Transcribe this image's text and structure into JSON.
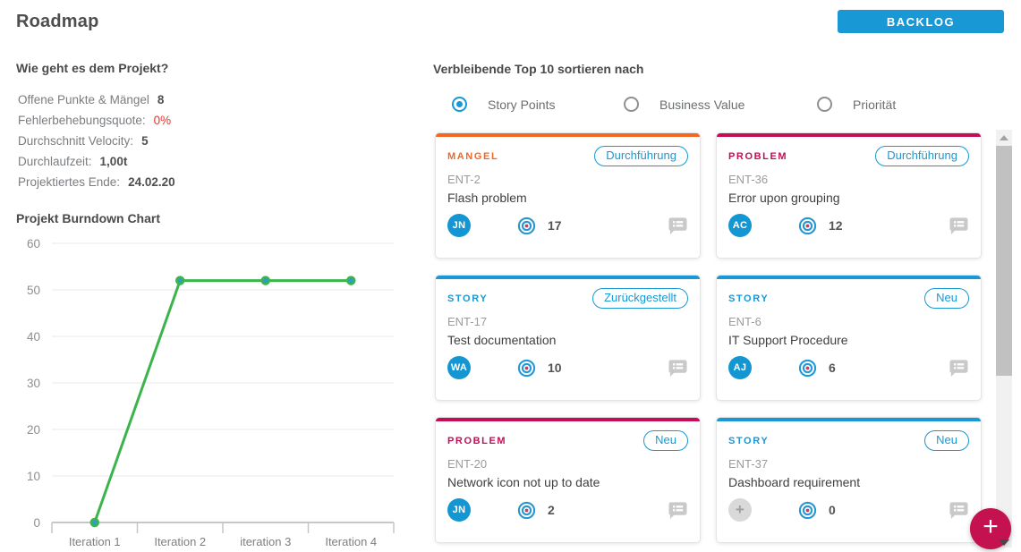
{
  "header": {
    "title": "Roadmap",
    "backlog_button": "BACKLOG"
  },
  "health": {
    "heading": "Wie geht es dem Projekt?",
    "stats": [
      {
        "label": "Offene Punkte & Mängel",
        "value": "8",
        "emphasis": "dark"
      },
      {
        "label": "Fehlerbehebungsquote:",
        "value": "0%",
        "emphasis": "red"
      },
      {
        "label": "Durchschnitt Velocity:",
        "value": "5",
        "emphasis": "dark"
      },
      {
        "label": "Durchlaufzeit:",
        "value": "1,00t",
        "emphasis": "dark"
      },
      {
        "label": "Projektiertes Ende:",
        "value": "24.02.20",
        "emphasis": "dark"
      }
    ]
  },
  "chart_data": {
    "type": "line",
    "title": "Projekt Burndown Chart",
    "categories": [
      "Iteration 1",
      "Iteration 2",
      "iteration 3",
      "Iteration 4"
    ],
    "values": [
      0,
      52,
      52,
      52
    ],
    "xlabel": "",
    "ylabel": "",
    "ylim": [
      0,
      60
    ],
    "yticks": [
      0,
      10,
      20,
      30,
      40,
      50,
      60
    ],
    "grid": true,
    "legend": "none",
    "line_color": "#3cb44b",
    "point_fill": "#2e9ec9"
  },
  "sort_section": {
    "heading": "Verbleibende Top 10 sortieren nach",
    "options": [
      {
        "label": "Story Points",
        "selected": true
      },
      {
        "label": "Business Value",
        "selected": false
      },
      {
        "label": "Priorität",
        "selected": false
      }
    ]
  },
  "cards": [
    {
      "type": "MANGEL",
      "type_color": "#f26722",
      "id": "ENT-2",
      "title": "Flash problem",
      "status": "Durchführung",
      "assignee": "JN",
      "points": "17"
    },
    {
      "type": "PROBLEM",
      "type_color": "#c50d56",
      "id": "ENT-36",
      "title": "Error upon grouping",
      "status": "Durchführung",
      "assignee": "AC",
      "points": "12"
    },
    {
      "type": "STORY",
      "type_color": "#1898d5",
      "id": "ENT-17",
      "title": "Test documentation",
      "status": "Zurückgestellt",
      "assignee": "WA",
      "points": "10"
    },
    {
      "type": "STORY",
      "type_color": "#1898d5",
      "id": "ENT-6",
      "title": "IT Support Procedure",
      "status": "Neu",
      "assignee": "AJ",
      "points": "6"
    },
    {
      "type": "PROBLEM",
      "type_color": "#c50d56",
      "id": "ENT-20",
      "title": "Network icon not up to date",
      "status": "Neu",
      "assignee": "JN",
      "points": "2"
    },
    {
      "type": "STORY",
      "type_color": "#1898d5",
      "id": "ENT-37",
      "title": "Dashboard requirement",
      "status": "Neu",
      "assignee": null,
      "points": "0"
    }
  ],
  "fab": {
    "label": "+"
  },
  "colors": {
    "accent_blue": "#1898d5",
    "orange": "#f26722",
    "crimson": "#c50d56",
    "fab_crimson": "#c4114f",
    "green": "#3cb44b",
    "red": "#e0372e"
  }
}
